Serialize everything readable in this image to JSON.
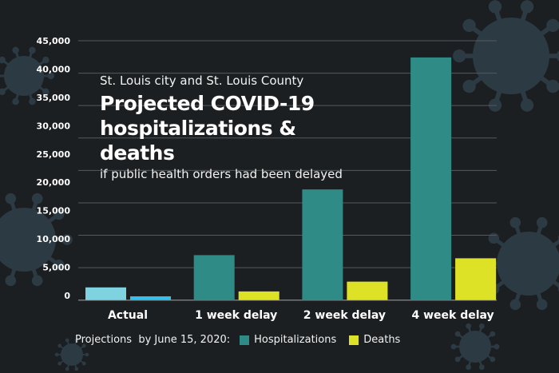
{
  "chart_data": {
    "type": "bar",
    "title": "Projected COVID-19 hospitalizations & deaths",
    "supertitle": "St. Louis city and St. Louis County",
    "subtitle": "if public health orders had been delayed",
    "categories": [
      "Actual",
      "1 week delay",
      "2 week delay",
      "4 week delay"
    ],
    "series": [
      {
        "name": "Hospitalizations",
        "values": [
          2200,
          7800,
          19200,
          42100
        ]
      },
      {
        "name": "Deaths",
        "values": [
          650,
          1500,
          3200,
          7250
        ]
      }
    ],
    "ylim": [
      0,
      45000
    ],
    "yticks": [
      "0",
      "5,000",
      "10,000",
      "15,000",
      "20,000",
      "25,000",
      "30,000",
      "35,000",
      "40,000",
      "45,000"
    ],
    "grid": true,
    "legend_prefix": "Projections  by June 15, 2020:",
    "legend_placement": "bottom",
    "colors": {
      "background": "#1c1f22",
      "hospitalizations": "#2e8b86",
      "deaths": "#dde227",
      "actual_hospitalizations": "#7fd3e0",
      "actual_deaths": "#35c0ec",
      "grid": "#55595d",
      "virus": "#2c3a44"
    }
  }
}
